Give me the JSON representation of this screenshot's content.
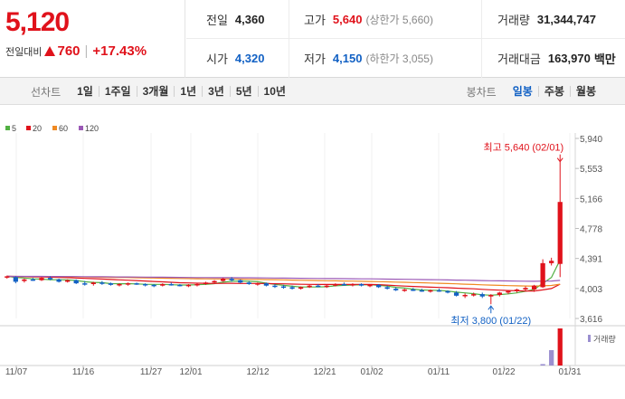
{
  "quote": {
    "price": "5,120",
    "change_label": "전일대비",
    "change_value": "760",
    "change_percent": "+17.43%",
    "prev_close_label": "전일",
    "prev_close": "4,360",
    "high_label": "고가",
    "high": "5,640",
    "upper_limit": "(상한가 5,660)",
    "volume_label": "거래량",
    "volume": "31,344,747",
    "open_label": "시가",
    "open": "4,320",
    "low_label": "저가",
    "low": "4,150",
    "lower_limit": "(하한가 3,055)",
    "amount_label": "거래대금",
    "amount": "163,970",
    "amount_unit": "백만"
  },
  "toolbar": {
    "line_chart_label": "선차트",
    "line_periods": [
      "1일",
      "1주일",
      "3개월",
      "1년",
      "3년",
      "5년",
      "10년"
    ],
    "candle_chart_label": "봉차트",
    "candle_periods": [
      "일봉",
      "주봉",
      "월봉"
    ],
    "active_candle": "일봉"
  },
  "chart_data": {
    "type": "candlestick",
    "legend": [
      {
        "name": "5",
        "color": "#52b043"
      },
      {
        "name": "20",
        "color": "#e0121b"
      },
      {
        "name": "60",
        "color": "#f08a22"
      },
      {
        "name": "120",
        "color": "#9b59b6"
      }
    ],
    "y_ticks": [
      "5,940",
      "5,553",
      "5,166",
      "4,778",
      "4,391",
      "4,003",
      "3,616"
    ],
    "ylim": [
      3616,
      5940
    ],
    "x_ticks": [
      "11/07",
      "11/16",
      "11/27",
      "12/01",
      "12/12",
      "12/21",
      "01/02",
      "01/11",
      "01/22",
      "01/31"
    ],
    "high_annotation": "최고 5,640 (02/01)",
    "low_annotation": "최저 3,800 (01/22)",
    "volume_label": "거래량",
    "candles": [
      [
        4150,
        4170,
        4130,
        4160
      ],
      [
        4150,
        4160,
        4070,
        4090
      ],
      [
        4100,
        4130,
        4080,
        4120
      ],
      [
        4120,
        4140,
        4100,
        4110
      ],
      [
        4110,
        4150,
        4100,
        4140
      ],
      [
        4140,
        4160,
        4110,
        4120
      ],
      [
        4120,
        4130,
        4080,
        4090
      ],
      [
        4090,
        4120,
        4080,
        4110
      ],
      [
        4110,
        4120,
        4060,
        4070
      ],
      [
        4070,
        4100,
        4040,
        4060
      ],
      [
        4060,
        4090,
        4040,
        4080
      ],
      [
        4080,
        4100,
        4050,
        4070
      ],
      [
        4070,
        4080,
        4040,
        4050
      ],
      [
        4050,
        4070,
        4030,
        4060
      ],
      [
        4060,
        4080,
        4040,
        4070
      ],
      [
        4070,
        4080,
        4050,
        4060
      ],
      [
        4060,
        4070,
        4030,
        4050
      ],
      [
        4050,
        4060,
        4020,
        4040
      ],
      [
        4040,
        4070,
        4030,
        4060
      ],
      [
        4060,
        4080,
        4040,
        4050
      ],
      [
        4050,
        4060,
        4030,
        4040
      ],
      [
        4040,
        4060,
        4020,
        4050
      ],
      [
        4050,
        4070,
        4030,
        4060
      ],
      [
        4060,
        4090,
        4050,
        4080
      ],
      [
        4080,
        4110,
        4070,
        4100
      ],
      [
        4100,
        4140,
        4090,
        4130
      ],
      [
        4130,
        4150,
        4090,
        4110
      ],
      [
        4110,
        4120,
        4070,
        4080
      ],
      [
        4080,
        4100,
        4050,
        4060
      ],
      [
        4060,
        4080,
        4040,
        4070
      ],
      [
        4070,
        4080,
        4030,
        4040
      ],
      [
        4040,
        4060,
        4010,
        4030
      ],
      [
        4030,
        4050,
        4000,
        4020
      ],
      [
        4020,
        4040,
        3990,
        4000
      ],
      [
        4000,
        4030,
        3990,
        4020
      ],
      [
        4020,
        4050,
        4010,
        4040
      ],
      [
        4040,
        4060,
        4020,
        4030
      ],
      [
        4030,
        4050,
        4010,
        4040
      ],
      [
        4040,
        4070,
        4030,
        4060
      ],
      [
        4060,
        4080,
        4040,
        4050
      ],
      [
        4050,
        4070,
        4030,
        4060
      ],
      [
        4060,
        4070,
        4030,
        4040
      ],
      [
        4040,
        4060,
        4020,
        4050
      ],
      [
        4050,
        4060,
        4010,
        4020
      ],
      [
        4020,
        4040,
        3990,
        4000
      ],
      [
        4000,
        4020,
        3970,
        3980
      ],
      [
        3980,
        4000,
        3960,
        3990
      ],
      [
        3990,
        4010,
        3970,
        3980
      ],
      [
        3980,
        4000,
        3960,
        3970
      ],
      [
        3970,
        3990,
        3950,
        3980
      ],
      [
        3980,
        4000,
        3960,
        3970
      ],
      [
        3970,
        3980,
        3940,
        3950
      ],
      [
        3950,
        3970,
        3900,
        3910
      ],
      [
        3910,
        3940,
        3880,
        3920
      ],
      [
        3920,
        3950,
        3900,
        3930
      ],
      [
        3930,
        3950,
        3880,
        3900
      ],
      [
        3900,
        3930,
        3800,
        3920
      ],
      [
        3920,
        3960,
        3900,
        3950
      ],
      [
        3950,
        3980,
        3930,
        3970
      ],
      [
        3970,
        4000,
        3950,
        3990
      ],
      [
        3990,
        4030,
        3970,
        4010
      ],
      [
        3990,
        4050,
        3960,
        4040
      ],
      [
        4020,
        4380,
        4010,
        4330
      ],
      [
        4330,
        4400,
        4300,
        4360
      ],
      [
        4320,
        5640,
        4150,
        5120
      ]
    ],
    "volumes": [
      0,
      0,
      0,
      0,
      0,
      0,
      0,
      0,
      0,
      0,
      0,
      0,
      0,
      0,
      0,
      0,
      0,
      0,
      0,
      0,
      0,
      0,
      0,
      0,
      0,
      0,
      0,
      0,
      0,
      0,
      0,
      0,
      0,
      0,
      0,
      0,
      0,
      0,
      0,
      0,
      0,
      0,
      0,
      0,
      0,
      0,
      0,
      0,
      0,
      0,
      0,
      0,
      0,
      0,
      0,
      0,
      0,
      0,
      0,
      0,
      0,
      0,
      1200000,
      13000000,
      31344747
    ]
  }
}
